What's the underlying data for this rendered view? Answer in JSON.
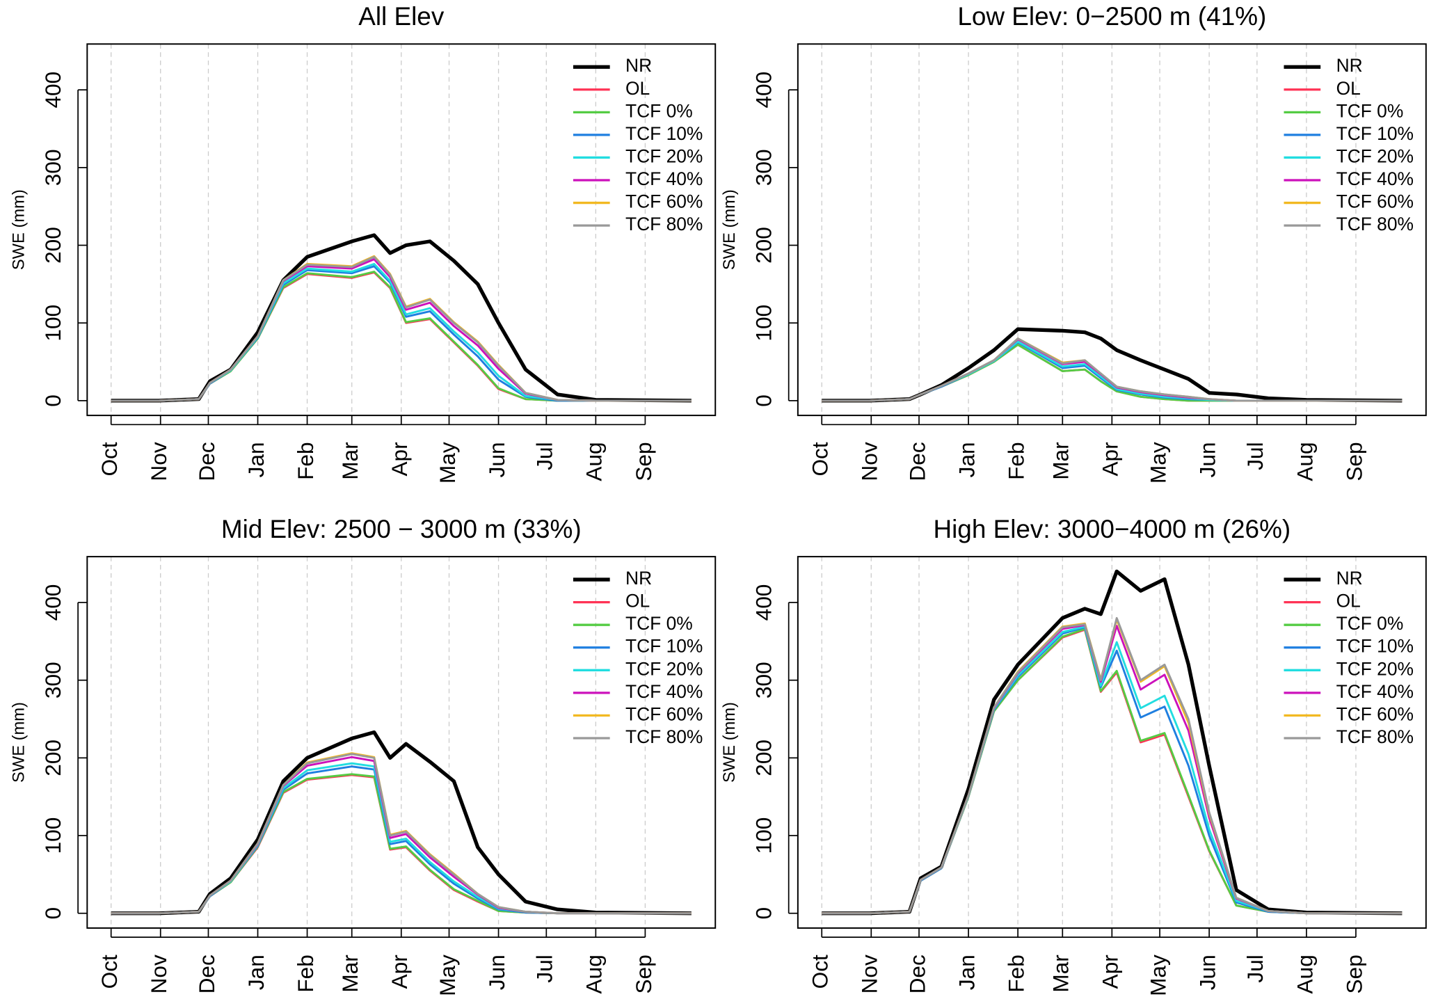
{
  "chart_data": [
    {
      "type": "line",
      "title": "All Elev",
      "ylabel": "SWE (mm)",
      "grid": true,
      "legend": "top-right",
      "xlim": [
        -15,
        379
      ],
      "ylim": [
        -19,
        459
      ],
      "xticks": [
        {
          "value": 0,
          "label": "Oct"
        },
        {
          "value": 31,
          "label": "Nov"
        },
        {
          "value": 61,
          "label": "Dec"
        },
        {
          "value": 92,
          "label": "Jan"
        },
        {
          "value": 123,
          "label": "Feb"
        },
        {
          "value": 151,
          "label": "Mar"
        },
        {
          "value": 182,
          "label": "Apr"
        },
        {
          "value": 212,
          "label": "May"
        },
        {
          "value": 243,
          "label": "Jun"
        },
        {
          "value": 273,
          "label": "Jul"
        },
        {
          "value": 304,
          "label": "Aug"
        },
        {
          "value": 335,
          "label": "Sep"
        }
      ],
      "yticks": [
        0,
        100,
        200,
        300,
        400
      ],
      "x": [
        0,
        30,
        55,
        62,
        75,
        92,
        108,
        123,
        151,
        165,
        175,
        185,
        200,
        215,
        230,
        243,
        260,
        280,
        304,
        364
      ],
      "series": [
        {
          "name": "NR",
          "color": "#000000",
          "values": [
            0,
            0,
            2,
            25,
            40,
            88,
            155,
            185,
            205,
            213,
            190,
            200,
            205,
            180,
            150,
            100,
            40,
            8,
            1,
            0
          ]
        },
        {
          "name": "OL",
          "color": "#ff3355",
          "values": [
            0,
            0,
            2,
            22,
            38,
            80,
            145,
            163,
            158,
            165,
            145,
            100,
            105,
            75,
            45,
            15,
            2,
            0,
            0,
            0
          ]
        },
        {
          "name": "TCF 0%",
          "color": "#55cc44",
          "values": [
            0,
            0,
            2,
            22,
            38,
            80,
            146,
            164,
            159,
            166,
            146,
            101,
            106,
            76,
            46,
            16,
            2,
            0,
            0,
            0
          ]
        },
        {
          "name": "TCF 10%",
          "color": "#1f7fe0",
          "values": [
            0,
            0,
            2,
            22,
            39,
            81,
            149,
            168,
            164,
            173,
            152,
            108,
            115,
            85,
            57,
            27,
            5,
            0,
            0,
            0
          ]
        },
        {
          "name": "TCF 20%",
          "color": "#22dde0",
          "values": [
            0,
            0,
            2,
            23,
            39,
            82,
            151,
            170,
            166,
            176,
            154,
            111,
            119,
            89,
            62,
            32,
            6,
            1,
            0,
            0
          ]
        },
        {
          "name": "TCF 40%",
          "color": "#cc11bb",
          "values": [
            0,
            0,
            2,
            23,
            40,
            83,
            154,
            173,
            170,
            182,
            159,
            117,
            126,
            96,
            71,
            41,
            9,
            1,
            0,
            0
          ]
        },
        {
          "name": "TCF 60%",
          "color": "#f2b922",
          "values": [
            0,
            0,
            2,
            23,
            40,
            83,
            155,
            176,
            173,
            186,
            163,
            121,
            131,
            101,
            76,
            46,
            10,
            1,
            0,
            0
          ]
        },
        {
          "name": "TCF 80%",
          "color": "#999999",
          "values": [
            0,
            0,
            2,
            23,
            40,
            83,
            155,
            175,
            172,
            185,
            162,
            120,
            130,
            100,
            75,
            45,
            10,
            1,
            0,
            0
          ]
        }
      ]
    },
    {
      "type": "line",
      "title": "Low Elev: 0−2500 m (41%)",
      "ylabel": "SWE (mm)",
      "grid": true,
      "legend": "top-right",
      "xlim": [
        -15,
        379
      ],
      "ylim": [
        -19,
        459
      ],
      "xticks": [
        {
          "value": 0,
          "label": "Oct"
        },
        {
          "value": 31,
          "label": "Nov"
        },
        {
          "value": 61,
          "label": "Dec"
        },
        {
          "value": 92,
          "label": "Jan"
        },
        {
          "value": 123,
          "label": "Feb"
        },
        {
          "value": 151,
          "label": "Mar"
        },
        {
          "value": 182,
          "label": "Apr"
        },
        {
          "value": 212,
          "label": "May"
        },
        {
          "value": 243,
          "label": "Jun"
        },
        {
          "value": 273,
          "label": "Jul"
        },
        {
          "value": 304,
          "label": "Aug"
        },
        {
          "value": 335,
          "label": "Sep"
        }
      ],
      "yticks": [
        0,
        100,
        200,
        300,
        400
      ],
      "x": [
        0,
        30,
        55,
        62,
        75,
        92,
        108,
        123,
        151,
        165,
        175,
        185,
        200,
        215,
        230,
        243,
        260,
        280,
        304,
        364
      ],
      "series": [
        {
          "name": "NR",
          "color": "#000000",
          "values": [
            0,
            0,
            2,
            8,
            20,
            42,
            65,
            92,
            90,
            88,
            80,
            65,
            52,
            40,
            28,
            10,
            8,
            3,
            1,
            0
          ]
        },
        {
          "name": "OL",
          "color": "#ff3355",
          "values": [
            0,
            0,
            2,
            8,
            18,
            33,
            50,
            72,
            38,
            40,
            25,
            12,
            5,
            2,
            0,
            0,
            0,
            0,
            0,
            0
          ]
        },
        {
          "name": "TCF 0%",
          "color": "#55cc44",
          "values": [
            0,
            0,
            2,
            8,
            18,
            33,
            50,
            72,
            38,
            40,
            25,
            12,
            5,
            2,
            0,
            0,
            0,
            0,
            0,
            0
          ]
        },
        {
          "name": "TCF 10%",
          "color": "#1f7fe0",
          "values": [
            0,
            0,
            2,
            8,
            18,
            34,
            51,
            75,
            42,
            45,
            29,
            14,
            8,
            4,
            2,
            1,
            0,
            0,
            0,
            0
          ]
        },
        {
          "name": "TCF 20%",
          "color": "#22dde0",
          "values": [
            0,
            0,
            2,
            8,
            19,
            34,
            51,
            76,
            44,
            47,
            31,
            15,
            9,
            5,
            3,
            1,
            0,
            0,
            0,
            0
          ]
        },
        {
          "name": "TCF 40%",
          "color": "#cc11bb",
          "values": [
            0,
            0,
            2,
            8,
            19,
            35,
            52,
            79,
            47,
            50,
            34,
            17,
            11,
            7,
            4,
            2,
            0,
            0,
            0,
            0
          ]
        },
        {
          "name": "TCF 60%",
          "color": "#f2b922",
          "values": [
            0,
            0,
            2,
            8,
            19,
            35,
            52,
            80,
            49,
            52,
            35,
            18,
            12,
            8,
            5,
            2,
            0,
            0,
            0,
            0
          ]
        },
        {
          "name": "TCF 80%",
          "color": "#999999",
          "values": [
            0,
            0,
            2,
            8,
            19,
            35,
            52,
            80,
            48,
            52,
            35,
            18,
            12,
            8,
            5,
            2,
            0,
            0,
            0,
            0
          ]
        }
      ]
    },
    {
      "type": "line",
      "title": "Mid Elev: 2500 − 3000 m (33%)",
      "ylabel": "SWE (mm)",
      "grid": true,
      "legend": "top-right",
      "xlim": [
        -15,
        379
      ],
      "ylim": [
        -19,
        459
      ],
      "xticks": [
        {
          "value": 0,
          "label": "Oct"
        },
        {
          "value": 31,
          "label": "Nov"
        },
        {
          "value": 61,
          "label": "Dec"
        },
        {
          "value": 92,
          "label": "Jan"
        },
        {
          "value": 123,
          "label": "Feb"
        },
        {
          "value": 151,
          "label": "Mar"
        },
        {
          "value": 182,
          "label": "Apr"
        },
        {
          "value": 212,
          "label": "May"
        },
        {
          "value": 243,
          "label": "Jun"
        },
        {
          "value": 273,
          "label": "Jul"
        },
        {
          "value": 304,
          "label": "Aug"
        },
        {
          "value": 335,
          "label": "Sep"
        }
      ],
      "yticks": [
        0,
        100,
        200,
        300,
        400
      ],
      "x": [
        0,
        30,
        55,
        62,
        75,
        92,
        108,
        123,
        151,
        165,
        175,
        185,
        200,
        215,
        230,
        243,
        260,
        280,
        304,
        364
      ],
      "series": [
        {
          "name": "NR",
          "color": "#000000",
          "values": [
            0,
            0,
            2,
            25,
            45,
            95,
            170,
            200,
            225,
            233,
            200,
            218,
            195,
            170,
            85,
            50,
            15,
            5,
            1,
            0
          ]
        },
        {
          "name": "OL",
          "color": "#ff3355",
          "values": [
            0,
            0,
            2,
            22,
            40,
            85,
            155,
            172,
            178,
            175,
            82,
            85,
            55,
            30,
            15,
            3,
            1,
            0,
            0,
            0
          ]
        },
        {
          "name": "TCF 0%",
          "color": "#55cc44",
          "values": [
            0,
            0,
            2,
            22,
            40,
            86,
            156,
            173,
            179,
            176,
            83,
            86,
            56,
            31,
            16,
            3,
            1,
            0,
            0,
            0
          ]
        },
        {
          "name": "TCF 10%",
          "color": "#1f7fe0",
          "values": [
            0,
            0,
            2,
            22,
            41,
            87,
            159,
            180,
            189,
            185,
            89,
            93,
            63,
            38,
            19,
            5,
            1,
            0,
            0,
            0
          ]
        },
        {
          "name": "TCF 20%",
          "color": "#22dde0",
          "values": [
            0,
            0,
            2,
            23,
            41,
            88,
            161,
            184,
            193,
            189,
            92,
            96,
            66,
            41,
            21,
            6,
            2,
            0,
            0,
            0
          ]
        },
        {
          "name": "TCF 40%",
          "color": "#cc11bb",
          "values": [
            0,
            0,
            2,
            23,
            42,
            89,
            164,
            190,
            201,
            196,
            97,
            102,
            72,
            47,
            24,
            7,
            2,
            0,
            0,
            0
          ]
        },
        {
          "name": "TCF 60%",
          "color": "#f2b922",
          "values": [
            0,
            0,
            2,
            23,
            42,
            90,
            165,
            194,
            206,
            201,
            101,
            106,
            76,
            51,
            25,
            8,
            2,
            0,
            0,
            0
          ]
        },
        {
          "name": "TCF 80%",
          "color": "#999999",
          "values": [
            0,
            0,
            2,
            23,
            42,
            90,
            165,
            193,
            205,
            200,
            100,
            105,
            75,
            50,
            25,
            8,
            2,
            0,
            0,
            0
          ]
        }
      ]
    },
    {
      "type": "line",
      "title": "High Elev: 3000−4000 m (26%)",
      "ylabel": "SWE (mm)",
      "grid": true,
      "legend": "top-right",
      "xlim": [
        -15,
        379
      ],
      "ylim": [
        -19,
        459
      ],
      "xticks": [
        {
          "value": 0,
          "label": "Oct"
        },
        {
          "value": 31,
          "label": "Nov"
        },
        {
          "value": 61,
          "label": "Dec"
        },
        {
          "value": 92,
          "label": "Jan"
        },
        {
          "value": 123,
          "label": "Feb"
        },
        {
          "value": 151,
          "label": "Mar"
        },
        {
          "value": 182,
          "label": "Apr"
        },
        {
          "value": 212,
          "label": "May"
        },
        {
          "value": 243,
          "label": "Jun"
        },
        {
          "value": 273,
          "label": "Jul"
        },
        {
          "value": 304,
          "label": "Aug"
        },
        {
          "value": 335,
          "label": "Sep"
        }
      ],
      "yticks": [
        0,
        100,
        200,
        300,
        400
      ],
      "x": [
        0,
        30,
        55,
        62,
        75,
        92,
        108,
        123,
        151,
        165,
        175,
        185,
        200,
        215,
        230,
        243,
        260,
        280,
        304,
        364
      ],
      "series": [
        {
          "name": "NR",
          "color": "#000000",
          "values": [
            0,
            0,
            2,
            45,
            60,
            160,
            275,
            320,
            380,
            392,
            385,
            440,
            415,
            430,
            320,
            190,
            30,
            5,
            1,
            0
          ]
        },
        {
          "name": "OL",
          "color": "#ff3355",
          "values": [
            0,
            0,
            2,
            42,
            58,
            150,
            260,
            300,
            355,
            365,
            285,
            310,
            220,
            230,
            150,
            80,
            10,
            2,
            0,
            0
          ]
        },
        {
          "name": "TCF 0%",
          "color": "#55cc44",
          "values": [
            0,
            0,
            2,
            42,
            58,
            150,
            260,
            300,
            356,
            366,
            286,
            312,
            222,
            232,
            152,
            81,
            10,
            2,
            0,
            0
          ]
        },
        {
          "name": "TCF 10%",
          "color": "#1f7fe0",
          "values": [
            0,
            0,
            2,
            42,
            58,
            151,
            262,
            304,
            360,
            368,
            291,
            338,
            252,
            266,
            190,
            100,
            14,
            2,
            0,
            0
          ]
        },
        {
          "name": "TCF 20%",
          "color": "#22dde0",
          "values": [
            0,
            0,
            2,
            43,
            59,
            151,
            263,
            306,
            362,
            369,
            293,
            349,
            264,
            280,
            205,
            108,
            16,
            3,
            0,
            0
          ]
        },
        {
          "name": "TCF 40%",
          "color": "#cc11bb",
          "values": [
            0,
            0,
            2,
            43,
            59,
            152,
            264,
            309,
            366,
            371,
            298,
            370,
            288,
            307,
            235,
            123,
            19,
            3,
            0,
            0
          ]
        },
        {
          "name": "TCF 60%",
          "color": "#f2b922",
          "values": [
            0,
            0,
            2,
            43,
            59,
            152,
            265,
            311,
            369,
            373,
            301,
            378,
            298,
            318,
            245,
            128,
            20,
            3,
            0,
            0
          ]
        },
        {
          "name": "TCF 80%",
          "color": "#999999",
          "values": [
            0,
            0,
            2,
            43,
            59,
            152,
            265,
            310,
            368,
            372,
            300,
            380,
            300,
            320,
            250,
            130,
            20,
            3,
            0,
            0
          ]
        }
      ]
    }
  ]
}
